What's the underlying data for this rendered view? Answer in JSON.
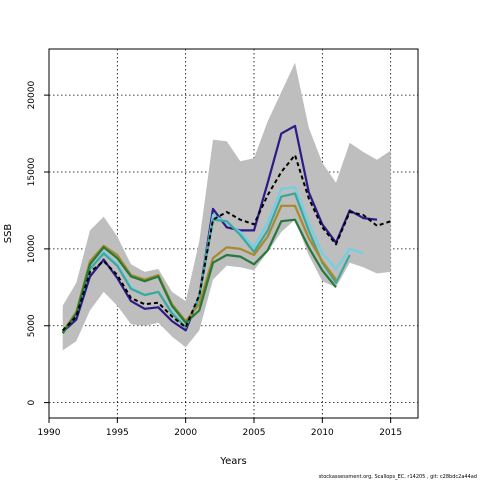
{
  "chart_data": {
    "type": "line",
    "xlabel": "Years",
    "ylabel": "SSB",
    "xlim": [
      1990,
      2017
    ],
    "ylim": [
      -1000,
      23000
    ],
    "xticks": [
      1990,
      1995,
      2000,
      2005,
      2010,
      2015
    ],
    "yticks": [
      0,
      5000,
      10000,
      15000,
      20000
    ],
    "grid": true,
    "footer": "stockassessment.org, Scallops_EC, r14205 , git: c28bdc2a44ad",
    "colors": {
      "band": "#bebebe",
      "reference": "#000000",
      "blue": "#2e1a87",
      "cyan": "#6fd0e6",
      "olive": "#a88a2c",
      "green": "#237a3b",
      "teal": "#3fa79a"
    },
    "band": {
      "x": [
        1991,
        1992,
        1993,
        1994,
        1995,
        1996,
        1997,
        1998,
        1999,
        2000,
        2001,
        2002,
        2003,
        2004,
        2005,
        2006,
        2007,
        2008,
        2009,
        2010,
        2011,
        2012,
        2013,
        2014,
        2015
      ],
      "upper": [
        6300,
        7800,
        11200,
        12100,
        10800,
        9000,
        8500,
        8700,
        7200,
        6600,
        10500,
        17100,
        17000,
        15700,
        15900,
        18300,
        20200,
        22100,
        17900,
        15600,
        14300,
        16900,
        16300,
        15800,
        16400
      ],
      "lower": [
        3400,
        4000,
        6000,
        7200,
        6300,
        5100,
        5000,
        5200,
        4300,
        3600,
        4700,
        8000,
        8900,
        8800,
        8600,
        9800,
        11100,
        11900,
        9600,
        7900,
        7500,
        9100,
        8800,
        8400,
        8500
      ]
    },
    "series": [
      {
        "key": "reference",
        "x": [
          1991,
          1992,
          1993,
          1994,
          1995,
          1996,
          1997,
          1998,
          1999,
          2000,
          2001,
          2002,
          2003,
          2004,
          2005,
          2006,
          2007,
          2008,
          2009,
          2010,
          2011,
          2012,
          2013,
          2014,
          2015
        ],
        "y": [
          4700,
          5600,
          8500,
          9200,
          8300,
          6800,
          6400,
          6500,
          5600,
          4900,
          7000,
          11900,
          12400,
          11900,
          11600,
          13500,
          15000,
          16100,
          13300,
          11400,
          10300,
          12400,
          12200,
          11500,
          11800
        ]
      },
      {
        "key": "blue",
        "x": [
          1991,
          1992,
          1993,
          1994,
          1995,
          1996,
          1997,
          1998,
          1999,
          2000,
          2001,
          2002,
          2003,
          2004,
          2005,
          2006,
          2007,
          2008,
          2009,
          2010,
          2011,
          2012,
          2013,
          2014
        ],
        "y": [
          4600,
          5400,
          8200,
          9300,
          8100,
          6600,
          6100,
          6200,
          5300,
          4700,
          6900,
          12600,
          11400,
          11200,
          11200,
          14300,
          17500,
          18000,
          13700,
          11600,
          10400,
          12500,
          12000,
          11900
        ]
      },
      {
        "key": "cyan",
        "x": [
          1991,
          1992,
          1993,
          1994,
          1995,
          1996,
          1997,
          1998,
          1999,
          2000,
          2001,
          2002,
          2003,
          2004,
          2005,
          2006,
          2007,
          2008,
          2009,
          2010,
          2011,
          2012,
          2013
        ],
        "y": [
          4600,
          5800,
          8700,
          9800,
          9000,
          7500,
          7000,
          7200,
          5900,
          4900,
          6900,
          12200,
          11700,
          11100,
          10100,
          11700,
          13900,
          14000,
          11700,
          9700,
          8700,
          10000,
          9700
        ]
      },
      {
        "key": "teal",
        "x": [
          1991,
          1992,
          1993,
          1994,
          1995,
          1996,
          1997,
          1998,
          1999,
          2000,
          2001,
          2002,
          2003,
          2004,
          2005,
          2006,
          2007,
          2008,
          2009,
          2010,
          2011,
          2012
        ],
        "y": [
          4600,
          5800,
          8700,
          9700,
          8900,
          7400,
          7000,
          7200,
          5800,
          4900,
          6900,
          11900,
          11800,
          10900,
          9800,
          11200,
          13400,
          13600,
          11200,
          9100,
          7800,
          9600
        ]
      },
      {
        "key": "olive",
        "x": [
          1991,
          1992,
          1993,
          1994,
          1995,
          1996,
          1997,
          1998,
          1999,
          2000,
          2001,
          2002,
          2003,
          2004,
          2005,
          2006,
          2007,
          2008,
          2009,
          2010,
          2011
        ],
        "y": [
          4600,
          5900,
          9200,
          10200,
          9600,
          8300,
          8000,
          8300,
          6400,
          5300,
          6400,
          9400,
          10100,
          10000,
          9600,
          10800,
          12800,
          12800,
          10700,
          9200,
          8000
        ]
      },
      {
        "key": "green",
        "x": [
          1991,
          1992,
          1993,
          1994,
          1995,
          1996,
          1997,
          1998,
          1999,
          2000,
          2001,
          2002,
          2003,
          2004,
          2005,
          2006,
          2007,
          2008,
          2009,
          2010,
          2011
        ],
        "y": [
          4500,
          5800,
          9000,
          10100,
          9400,
          8200,
          7900,
          8200,
          6300,
          5200,
          6000,
          9100,
          9600,
          9500,
          9000,
          9900,
          11800,
          11900,
          10100,
          8600,
          7500
        ]
      }
    ]
  }
}
